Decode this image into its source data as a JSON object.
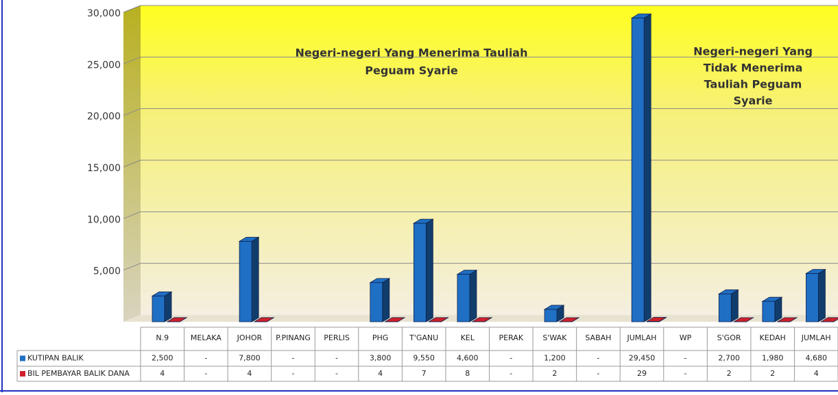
{
  "chart_data": {
    "type": "bar3d",
    "categories": [
      "N.9",
      "MELAKA",
      "JOHOR",
      "P.PINANG",
      "PERLIS",
      "PHG",
      "T'GANU",
      "KEL",
      "PERAK",
      "S'WAK",
      "SABAH",
      "JUMLAH",
      "WP",
      "S'GOR",
      "KEDAH",
      "JUMLAH"
    ],
    "series": [
      {
        "name": "KUTIPAN BALIK",
        "color": "#1f6fc4",
        "values": [
          2500,
          null,
          7800,
          null,
          null,
          3800,
          9550,
          4600,
          null,
          1200,
          null,
          29450,
          null,
          2700,
          1980,
          4680
        ],
        "value_labels": [
          "2,500",
          "-",
          "7,800",
          "-",
          "-",
          "3,800",
          "9,550",
          "4,600",
          "-",
          "1,200",
          "-",
          "29,450",
          "-",
          "2,700",
          "1,980",
          "4,680"
        ]
      },
      {
        "name": "BIL PEMBAYAR BALIK DANA",
        "color": "#d0202a",
        "values": [
          4,
          null,
          4,
          null,
          null,
          4,
          7,
          8,
          null,
          2,
          null,
          29,
          null,
          2,
          2,
          4
        ],
        "value_labels": [
          "4",
          "-",
          "4",
          "-",
          "-",
          "4",
          "7",
          "8",
          "-",
          "2",
          "-",
          "29",
          "-",
          "2",
          "2",
          "4"
        ]
      }
    ],
    "ylim": [
      0,
      30000
    ],
    "yticks": [
      {
        "value": 5000,
        "label": "5,000"
      },
      {
        "value": 10000,
        "label": "10,000"
      },
      {
        "value": 15000,
        "label": "15,000"
      },
      {
        "value": 20000,
        "label": "20,000"
      },
      {
        "value": 25000,
        "label": "25,000"
      },
      {
        "value": 30000,
        "label": "30,000"
      }
    ],
    "grid": true,
    "annotations": [
      {
        "lines": [
          "Negeri-negeri  Yang Menerima Tauliah",
          "Peguam Syarie"
        ]
      },
      {
        "lines": [
          "Negeri-negeri Yang",
          "Tidak Menerima",
          "Tauliah Peguam",
          "Syarie"
        ]
      }
    ]
  }
}
